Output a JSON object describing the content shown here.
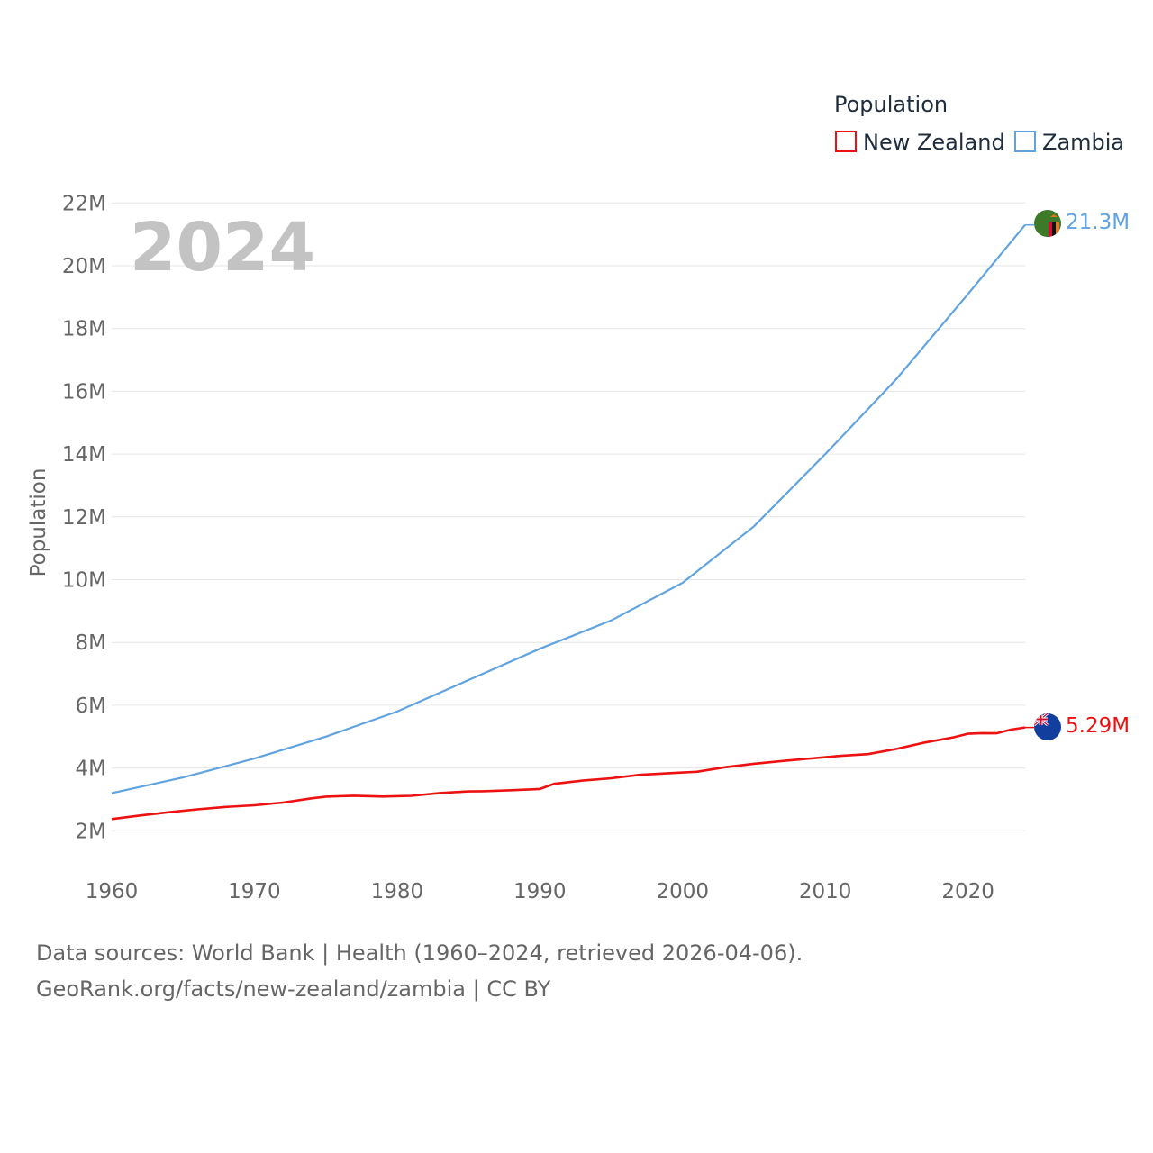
{
  "chart_data": {
    "type": "line",
    "year_label": "2024",
    "legend_title": "Population",
    "ylabel": "Population",
    "xlabel": "",
    "xlim": [
      1960,
      2024
    ],
    "ylim": [
      1000000,
      22500000
    ],
    "x_ticks": [
      1960,
      1970,
      1980,
      1990,
      2000,
      2010,
      2020
    ],
    "x_tick_labels": [
      "1960",
      "1970",
      "1980",
      "1990",
      "2000",
      "2010",
      "2020"
    ],
    "y_ticks": [
      2000000,
      4000000,
      6000000,
      8000000,
      10000000,
      12000000,
      14000000,
      16000000,
      18000000,
      20000000,
      22000000
    ],
    "y_tick_labels": [
      "2M",
      "4M",
      "6M",
      "8M",
      "10M",
      "12M",
      "14M",
      "16M",
      "18M",
      "20M",
      "22M"
    ],
    "series": [
      {
        "name": "New Zealand",
        "color": "#ee1111",
        "end_label": "5.29M",
        "flag_icon": "new-zealand-flag-icon",
        "x": [
          1960,
          1962,
          1964,
          1966,
          1968,
          1970,
          1972,
          1974,
          1975,
          1977,
          1979,
          1981,
          1983,
          1985,
          1986,
          1988,
          1990,
          1991,
          1993,
          1995,
          1997,
          1999,
          2001,
          2003,
          2005,
          2007,
          2009,
          2011,
          2013,
          2015,
          2017,
          2019,
          2020,
          2021,
          2022,
          2023,
          2024
        ],
        "values": [
          2372000,
          2488000,
          2592000,
          2682000,
          2759000,
          2811000,
          2899000,
          3032000,
          3087000,
          3115000,
          3091000,
          3113000,
          3201000,
          3255000,
          3260000,
          3292000,
          3330000,
          3495000,
          3597000,
          3674000,
          3781000,
          3835000,
          3880000,
          4027000,
          4134000,
          4223000,
          4303000,
          4384000,
          4442000,
          4609000,
          4814000,
          4979000,
          5090000,
          5111000,
          5104000,
          5223000,
          5290000
        ]
      },
      {
        "name": "Zambia",
        "color": "#61a3e0",
        "end_label": "21.3M",
        "flag_icon": "zambia-flag-icon",
        "x": [
          1960,
          1965,
          1970,
          1975,
          1980,
          1985,
          1990,
          1995,
          2000,
          2005,
          2010,
          2015,
          2020,
          2024
        ],
        "values": [
          3200000,
          3700000,
          4300000,
          5000000,
          5800000,
          6800000,
          7800000,
          8700000,
          9900000,
          11700000,
          14000000,
          16400000,
          19100000,
          21300000
        ]
      }
    ]
  },
  "footer": {
    "line1": "Data sources: World Bank | Health (1960–2024, retrieved 2026-04-06).",
    "line2": "GeoRank.org/facts/new-zealand/zambia | CC BY"
  }
}
